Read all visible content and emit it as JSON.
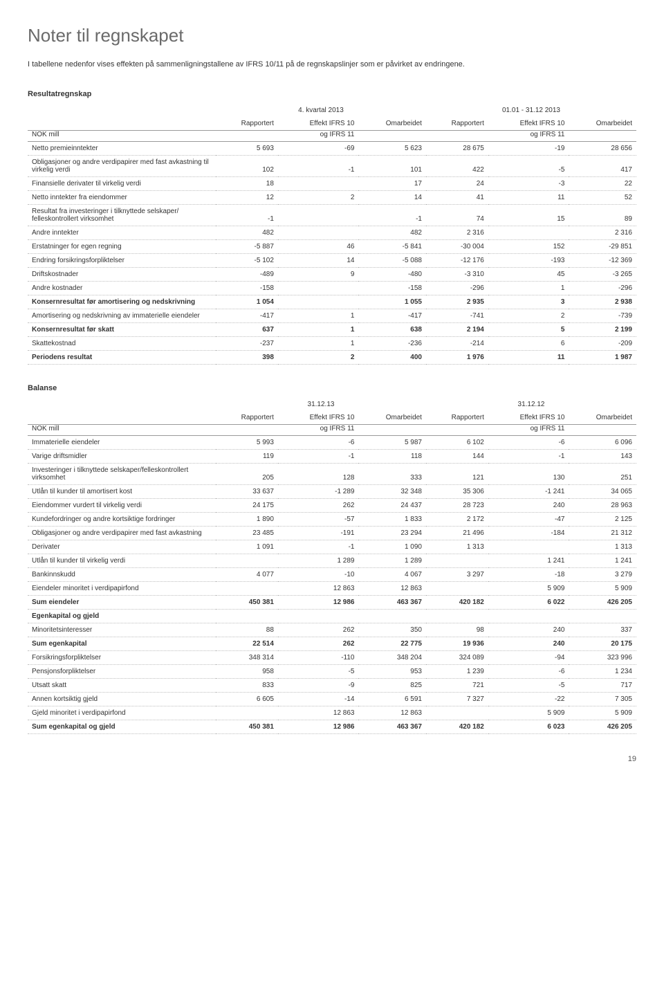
{
  "title": "Noter til regnskapet",
  "intro": "I tabellene nedenfor vises effekten på sammenligningstallene av IFRS 10/11 på de regnskapslinjer som er påvirket av endringene.",
  "page_number": "19",
  "colors": {
    "heading": "#6a6a6a",
    "text": "#333333",
    "dotted_border": "#bfbfbf",
    "solid_border": "#999999",
    "background": "#ffffff"
  },
  "typography": {
    "heading_fontsize": 26,
    "body_fontsize": 11,
    "table_fontsize": 10
  },
  "resultat": {
    "section": "Resultatregnskap",
    "period1": "4. kvartal 2013",
    "period2": "01.01 - 31.12 2013",
    "col_nok": "NOK mill",
    "col_rapp": "Rapportert",
    "col_eff1": "Effekt IFRS 10",
    "col_eff2": "og IFRS 11",
    "col_omar": "Omarbeidet",
    "rows": [
      {
        "label": "Netto premieinntekter",
        "v": [
          "5 693",
          "-69",
          "5 623",
          "28 675",
          "-19",
          "28 656"
        ]
      },
      {
        "label": "Obligasjoner og andre verdipapirer med fast avkastning til virkelig verdi",
        "v": [
          "102",
          "-1",
          "101",
          "422",
          "-5",
          "417"
        ]
      },
      {
        "label": "Finansielle derivater til virkelig verdi",
        "v": [
          "18",
          "",
          "17",
          "24",
          "-3",
          "22"
        ]
      },
      {
        "label": "Netto inntekter fra eiendommer",
        "v": [
          "12",
          "2",
          "14",
          "41",
          "11",
          "52"
        ]
      },
      {
        "label": "Resultat fra investeringer i tilknyttede selskaper/ felleskontrollert virksomhet",
        "v": [
          "-1",
          "",
          "-1",
          "74",
          "15",
          "89"
        ]
      },
      {
        "label": "Andre inntekter",
        "v": [
          "482",
          "",
          "482",
          "2 316",
          "",
          "2 316"
        ]
      },
      {
        "label": "Erstatninger for egen regning",
        "v": [
          "-5 887",
          "46",
          "-5 841",
          "-30 004",
          "152",
          "-29 851"
        ]
      },
      {
        "label": "Endring forsikringsforpliktelser",
        "v": [
          "-5 102",
          "14",
          "-5 088",
          "-12 176",
          "-193",
          "-12 369"
        ]
      },
      {
        "label": "Driftskostnader",
        "v": [
          "-489",
          "9",
          "-480",
          "-3 310",
          "45",
          "-3 265"
        ]
      },
      {
        "label": "Andre kostnader",
        "v": [
          "-158",
          "",
          "-158",
          "-296",
          "1",
          "-296"
        ]
      },
      {
        "label": "Konsernresultat før amortisering og nedskrivning",
        "v": [
          "1 054",
          "",
          "1 055",
          "2 935",
          "3",
          "2 938"
        ],
        "bold": true
      },
      {
        "label": "Amortisering og nedskrivning av immaterielle eiendeler",
        "v": [
          "-417",
          "1",
          "-417",
          "-741",
          "2",
          "-739"
        ]
      },
      {
        "label": "Konsernresultat før skatt",
        "v": [
          "637",
          "1",
          "638",
          "2 194",
          "5",
          "2 199"
        ],
        "bold": true
      },
      {
        "label": "Skattekostnad",
        "v": [
          "-237",
          "1",
          "-236",
          "-214",
          "6",
          "-209"
        ]
      },
      {
        "label": "Periodens resultat",
        "v": [
          "398",
          "2",
          "400",
          "1 976",
          "11",
          "1 987"
        ],
        "bold": true
      }
    ]
  },
  "balanse": {
    "section": "Balanse",
    "period1": "31.12.13",
    "period2": "31.12.12",
    "col_nok": "NOK mill",
    "col_rapp": "Rapportert",
    "col_eff1": "Effekt IFRS 10",
    "col_eff2": "og IFRS 11",
    "col_omar": "Omarbeidet",
    "rows": [
      {
        "label": "Immaterielle eiendeler",
        "v": [
          "5 993",
          "-6",
          "5 987",
          "6 102",
          "-6",
          "6 096"
        ]
      },
      {
        "label": "Varige driftsmidler",
        "v": [
          "119",
          "-1",
          "118",
          "144",
          "-1",
          "143"
        ]
      },
      {
        "label": "Investeringer i tilknyttede selskaper/felleskontrollert virksomhet",
        "v": [
          "205",
          "128",
          "333",
          "121",
          "130",
          "251"
        ]
      },
      {
        "label": "Utlån til kunder til amortisert kost",
        "v": [
          "33 637",
          "-1 289",
          "32 348",
          "35 306",
          "-1 241",
          "34 065"
        ]
      },
      {
        "label": "Eiendommer vurdert til virkelig verdi",
        "v": [
          "24 175",
          "262",
          "24 437",
          "28 723",
          "240",
          "28 963"
        ]
      },
      {
        "label": "Kundefordringer og andre kortsiktige fordringer",
        "v": [
          "1 890",
          "-57",
          "1 833",
          "2 172",
          "-47",
          "2 125"
        ]
      },
      {
        "label": "Obligasjoner og andre verdipapirer med fast avkastning",
        "v": [
          "23 485",
          "-191",
          "23 294",
          "21 496",
          "-184",
          "21 312"
        ]
      },
      {
        "label": "Derivater",
        "v": [
          "1 091",
          "-1",
          "1 090",
          "1 313",
          "",
          "1 313"
        ]
      },
      {
        "label": "Utlån til kunder til virkelig verdi",
        "v": [
          "",
          "1 289",
          "1 289",
          "",
          "1 241",
          "1 241"
        ]
      },
      {
        "label": "Bankinnskudd",
        "v": [
          "4 077",
          "-10",
          "4 067",
          "3 297",
          "-18",
          "3 279"
        ]
      },
      {
        "label": "Eiendeler minoritet i verdipapirfond",
        "v": [
          "",
          "12 863",
          "12 863",
          "",
          "5 909",
          "5 909"
        ]
      },
      {
        "label": "Sum eiendeler",
        "v": [
          "450 381",
          "12 986",
          "463 367",
          "420 182",
          "6 022",
          "426 205"
        ],
        "bold": true
      },
      {
        "label": "Egenkapital og gjeld",
        "v": [
          "",
          "",
          "",
          "",
          "",
          ""
        ],
        "bold": true
      },
      {
        "label": "Minoritetsinteresser",
        "v": [
          "88",
          "262",
          "350",
          "98",
          "240",
          "337"
        ]
      },
      {
        "label": "Sum egenkapital",
        "v": [
          "22 514",
          "262",
          "22 775",
          "19 936",
          "240",
          "20 175"
        ],
        "bold": true
      },
      {
        "label": "Forsikringsforpliktelser",
        "v": [
          "348 314",
          "-110",
          "348 204",
          "324 089",
          "-94",
          "323 996"
        ]
      },
      {
        "label": "Pensjonsforpliktelser",
        "v": [
          "958",
          "-5",
          "953",
          "1 239",
          "-6",
          "1 234"
        ]
      },
      {
        "label": "Utsatt skatt",
        "v": [
          "833",
          "-9",
          "825",
          "721",
          "-5",
          "717"
        ]
      },
      {
        "label": "Annen kortsiktig gjeld",
        "v": [
          "6 605",
          "-14",
          "6 591",
          "7 327",
          "-22",
          "7 305"
        ]
      },
      {
        "label": "Gjeld minoritet i verdipapirfond",
        "v": [
          "",
          "12 863",
          "12 863",
          "",
          "5 909",
          "5 909"
        ]
      },
      {
        "label": "Sum egenkapital og gjeld",
        "v": [
          "450 381",
          "12 986",
          "463 367",
          "420 182",
          "6 023",
          "426 205"
        ],
        "bold": true
      }
    ]
  }
}
